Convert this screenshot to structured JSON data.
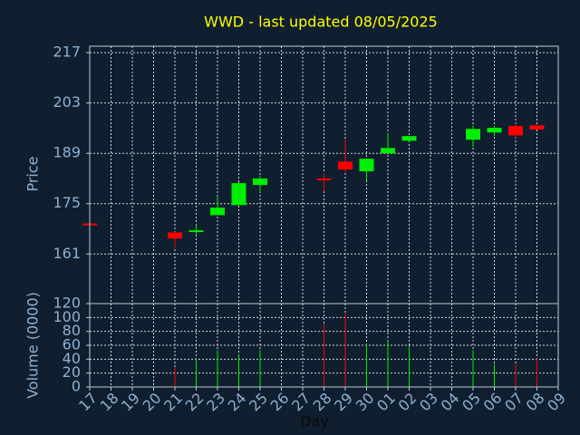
{
  "chart_data": [
    {
      "type": "candlestick",
      "title": "WWD - last updated 08/05/2025",
      "ylabel": "Price",
      "categories": [
        "17",
        "18",
        "19",
        "20",
        "21",
        "22",
        "23",
        "24",
        "25",
        "26",
        "27",
        "28",
        "29",
        "30",
        "01",
        "02",
        "03",
        "04",
        "05",
        "06",
        "07",
        "08",
        "09"
      ],
      "open": [
        169.5,
        null,
        null,
        null,
        167.0,
        167.4,
        171.8,
        174.6,
        180.2,
        null,
        null,
        182.0,
        186.7,
        184.0,
        189.0,
        192.5,
        null,
        null,
        192.8,
        194.8,
        196.6,
        196.8,
        null
      ],
      "high": [
        169.6,
        null,
        null,
        null,
        167.2,
        169.1,
        177.1,
        181.0,
        182.7,
        null,
        null,
        183.5,
        193.0,
        187.5,
        194.5,
        193.8,
        null,
        null,
        196.8,
        196.6,
        197.3,
        196.8,
        null
      ],
      "low": [
        169.1,
        null,
        null,
        null,
        162.8,
        166.5,
        171.8,
        174.6,
        178.2,
        null,
        null,
        178.4,
        183.7,
        181.4,
        189.0,
        192.3,
        null,
        null,
        190.8,
        193.8,
        193.3,
        195.6,
        null
      ],
      "close": [
        169.2,
        null,
        null,
        null,
        165.3,
        167.6,
        173.9,
        180.7,
        182.0,
        null,
        null,
        181.5,
        184.5,
        187.5,
        190.5,
        193.8,
        null,
        null,
        195.8,
        196.1,
        194.0,
        195.6,
        null
      ],
      "up_color": "#00ee00",
      "down_color": "#ff0000",
      "ylim": [
        147.2,
        218.8
      ],
      "yticks": [
        161,
        175,
        189,
        203,
        217
      ],
      "grid": true
    },
    {
      "type": "volume",
      "ylabel": "Volume (0000)",
      "xlabel": "Day",
      "categories": [
        "17",
        "18",
        "19",
        "20",
        "21",
        "22",
        "23",
        "24",
        "25",
        "26",
        "27",
        "28",
        "29",
        "30",
        "01",
        "02",
        "03",
        "04",
        "05",
        "06",
        "07",
        "08",
        "09"
      ],
      "values": [
        null,
        null,
        null,
        null,
        28,
        41,
        53,
        46,
        53,
        null,
        null,
        90,
        106,
        63,
        67,
        59,
        null,
        null,
        53,
        33,
        33,
        41,
        null
      ],
      "colors": [
        null,
        null,
        null,
        null,
        "#ff0000",
        "#00ee00",
        "#00ee00",
        "#00ee00",
        "#00ee00",
        null,
        null,
        "#ff0000",
        "#ff0000",
        "#00ee00",
        "#00ee00",
        "#00ee00",
        null,
        null,
        "#00ee00",
        "#00ee00",
        "#ff0000",
        "#ff0000",
        null
      ],
      "ylim": [
        0,
        120
      ],
      "yticks": [
        0,
        20,
        40,
        60,
        80,
        100,
        120
      ],
      "grid": true
    }
  ]
}
